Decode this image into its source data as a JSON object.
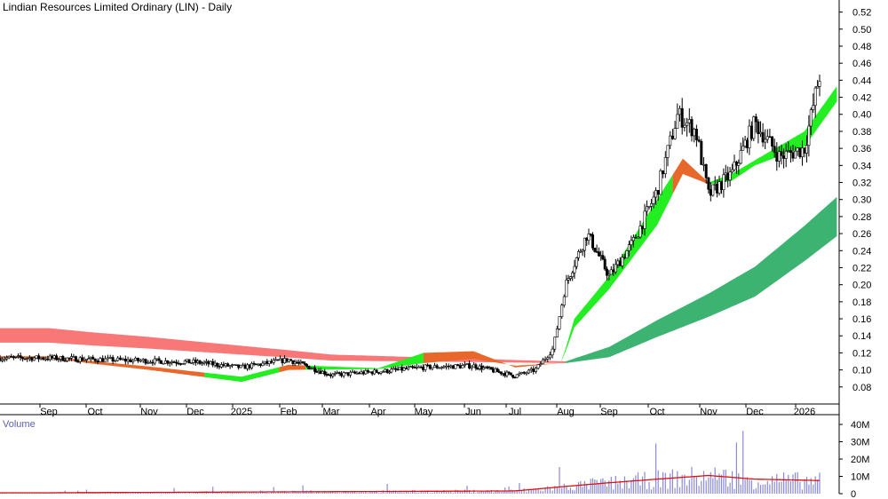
{
  "chart_data": {
    "type": "candlestick",
    "title": "Lindian Resources Limited Ordinary (LIN) - Daily",
    "price_axis": {
      "ylim": [
        0.06,
        0.53
      ],
      "ticks": [
        "0.52",
        "0.50",
        "0.48",
        "0.46",
        "0.44",
        "0.42",
        "0.40",
        "0.38",
        "0.36",
        "0.34",
        "0.32",
        "0.30",
        "0.28",
        "0.26",
        "0.24",
        "0.22",
        "0.20",
        "0.18",
        "0.16",
        "0.14",
        "0.12",
        "0.10",
        "0.08"
      ]
    },
    "x_axis": {
      "labels": [
        "Sep",
        "Oct",
        "Nov",
        "Dec",
        "2025",
        "Feb",
        "Mar",
        "Apr",
        "May",
        "Jun",
        "Jul",
        "Aug",
        "Sep",
        "Oct",
        "Nov",
        "Dec",
        "2026"
      ]
    },
    "volume_panel": {
      "label": "Volume",
      "ylim_millions": [
        0,
        40
      ],
      "ticks": [
        "40M",
        "30M",
        "20M",
        "10M",
        "0"
      ]
    },
    "price_keypoints": [
      [
        0.0,
        0.114
      ],
      [
        3.0,
        0.109
      ],
      [
        4.0,
        0.103
      ],
      [
        5.0,
        0.112
      ],
      [
        6.0,
        0.094
      ],
      [
        7.0,
        0.098
      ],
      [
        8.0,
        0.103
      ],
      [
        9.0,
        0.105
      ],
      [
        10.0,
        0.093
      ],
      [
        10.4,
        0.1
      ],
      [
        10.75,
        0.125
      ],
      [
        11.0,
        0.2
      ],
      [
        11.2,
        0.225
      ],
      [
        11.5,
        0.26
      ],
      [
        12.0,
        0.21
      ],
      [
        12.5,
        0.25
      ],
      [
        13.0,
        0.31
      ],
      [
        13.4,
        0.4
      ],
      [
        13.75,
        0.38
      ],
      [
        14.0,
        0.305
      ],
      [
        14.5,
        0.33
      ],
      [
        15.0,
        0.39
      ],
      [
        15.5,
        0.35
      ],
      [
        16.0,
        0.36
      ],
      [
        16.3,
        0.44
      ],
      [
        16.5,
        0.48
      ],
      [
        16.7,
        0.49
      ]
    ],
    "volume_keypoints_millions": [
      [
        0.0,
        0.5
      ],
      [
        10.0,
        1.5
      ],
      [
        11.0,
        4.0
      ],
      [
        13.0,
        8.0
      ],
      [
        14.0,
        10.0
      ],
      [
        15.0,
        8.0
      ],
      [
        16.7,
        7.0
      ]
    ],
    "bands": {
      "long_term": {
        "color": "#f87878",
        "upper": [
          [
            0.0,
            0.149
          ],
          [
            6.0,
            0.118
          ],
          [
            11.0,
            0.11
          ],
          [
            12.0,
            0.127
          ],
          [
            15.0,
            0.221
          ],
          [
            16.7,
            0.303
          ]
        ],
        "lower": [
          [
            0.0,
            0.132
          ],
          [
            6.0,
            0.111
          ],
          [
            11.0,
            0.108
          ],
          [
            12.0,
            0.115
          ],
          [
            15.0,
            0.186
          ],
          [
            16.7,
            0.257
          ]
        ]
      },
      "short_term": {
        "up_color": "#22ee22",
        "down_color": "#e8682c",
        "upper": [
          [
            0.0,
            0.116
          ],
          [
            4.0,
            0.092
          ],
          [
            5.0,
            0.106
          ],
          [
            7.0,
            0.102
          ],
          [
            8.0,
            0.12
          ],
          [
            9.0,
            0.122
          ],
          [
            10.0,
            0.103
          ],
          [
            10.9,
            0.108
          ],
          [
            11.2,
            0.16
          ],
          [
            12.0,
            0.21
          ],
          [
            13.0,
            0.3
          ],
          [
            13.5,
            0.348
          ],
          [
            14.0,
            0.32
          ],
          [
            14.5,
            0.33
          ],
          [
            15.0,
            0.346
          ],
          [
            16.0,
            0.38
          ],
          [
            16.7,
            0.433
          ]
        ],
        "lower": [
          [
            0.0,
            0.114
          ],
          [
            4.0,
            0.086
          ],
          [
            5.0,
            0.1
          ],
          [
            7.0,
            0.101
          ],
          [
            8.0,
            0.108
          ],
          [
            9.0,
            0.113
          ],
          [
            10.0,
            0.105
          ],
          [
            10.9,
            0.108
          ],
          [
            11.2,
            0.15
          ],
          [
            12.0,
            0.195
          ],
          [
            13.0,
            0.27
          ],
          [
            13.5,
            0.33
          ],
          [
            14.0,
            0.318
          ],
          [
            14.5,
            0.322
          ],
          [
            15.0,
            0.34
          ],
          [
            16.0,
            0.362
          ],
          [
            16.7,
            0.415
          ]
        ]
      }
    },
    "colors": {
      "candle": "#000000",
      "volume_bar": "#8a8ad8",
      "volume_avg": "#e01010",
      "long_band": "#f87878",
      "long_band_up": "#3cb371",
      "axis": "#000000"
    },
    "grid": false
  }
}
